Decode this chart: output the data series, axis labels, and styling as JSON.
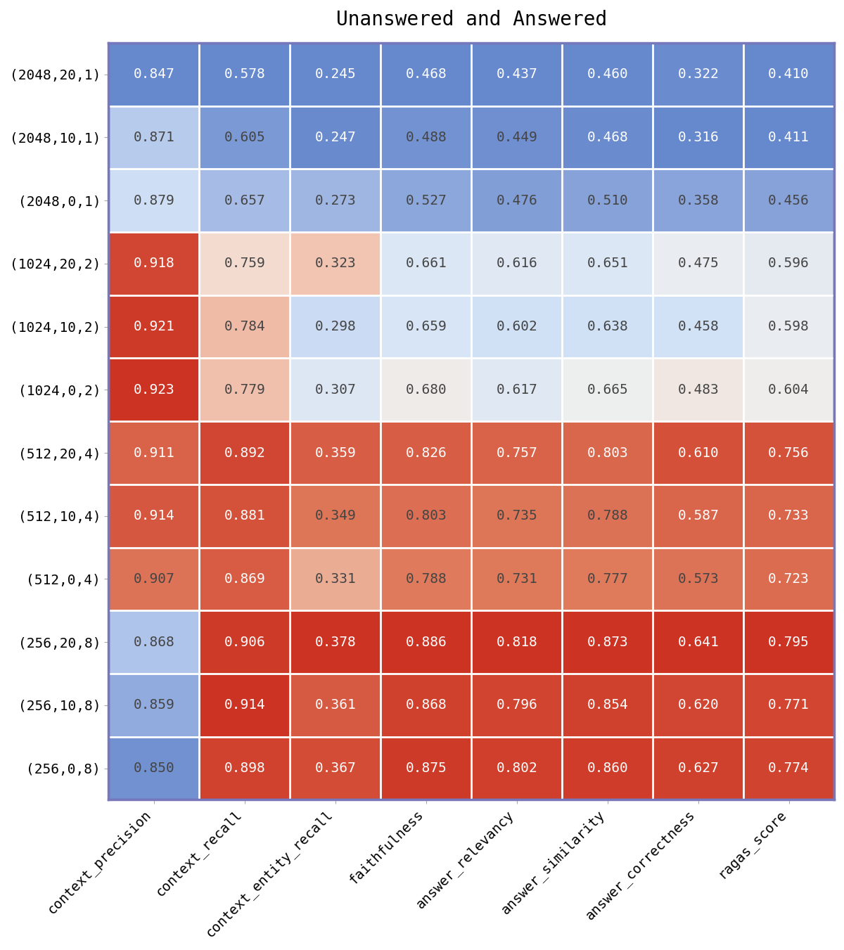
{
  "title": "Unanswered and Answered",
  "rows": [
    "(2048,20,1)",
    "(2048,10,1)",
    "(2048,0,1)",
    "(1024,20,2)",
    "(1024,10,2)",
    "(1024,0,2)",
    "(512,20,4)",
    "(512,10,4)",
    "(512,0,4)",
    "(256,20,8)",
    "(256,10,8)",
    "(256,0,8)"
  ],
  "cols": [
    "context_precision",
    "context_recall",
    "context_entity_recall",
    "faithfulness",
    "answer_relevancy",
    "answer_similarity",
    "answer_correctness",
    "ragas_score"
  ],
  "values": [
    [
      0.847,
      0.578,
      0.245,
      0.468,
      0.437,
      0.46,
      0.322,
      0.41
    ],
    [
      0.871,
      0.605,
      0.247,
      0.488,
      0.449,
      0.468,
      0.316,
      0.411
    ],
    [
      0.879,
      0.657,
      0.273,
      0.527,
      0.476,
      0.51,
      0.358,
      0.456
    ],
    [
      0.918,
      0.759,
      0.323,
      0.661,
      0.616,
      0.651,
      0.475,
      0.596
    ],
    [
      0.921,
      0.784,
      0.298,
      0.659,
      0.602,
      0.638,
      0.458,
      0.598
    ],
    [
      0.923,
      0.779,
      0.307,
      0.68,
      0.617,
      0.665,
      0.483,
      0.604
    ],
    [
      0.911,
      0.892,
      0.359,
      0.826,
      0.757,
      0.803,
      0.61,
      0.756
    ],
    [
      0.914,
      0.881,
      0.349,
      0.803,
      0.735,
      0.788,
      0.587,
      0.733
    ],
    [
      0.907,
      0.869,
      0.331,
      0.788,
      0.731,
      0.777,
      0.573,
      0.723
    ],
    [
      0.868,
      0.906,
      0.378,
      0.886,
      0.818,
      0.873,
      0.641,
      0.795
    ],
    [
      0.859,
      0.914,
      0.361,
      0.868,
      0.796,
      0.854,
      0.62,
      0.771
    ],
    [
      0.85,
      0.898,
      0.367,
      0.875,
      0.802,
      0.86,
      0.627,
      0.774
    ]
  ],
  "title_fontsize": 20,
  "tick_fontsize": 14,
  "cell_fontsize": 14,
  "background_color": "#ffffff",
  "border_color": "#7777bb",
  "grid_color": "#ffffff",
  "text_color_dark": "#444444",
  "text_color_light": "#ffffff"
}
